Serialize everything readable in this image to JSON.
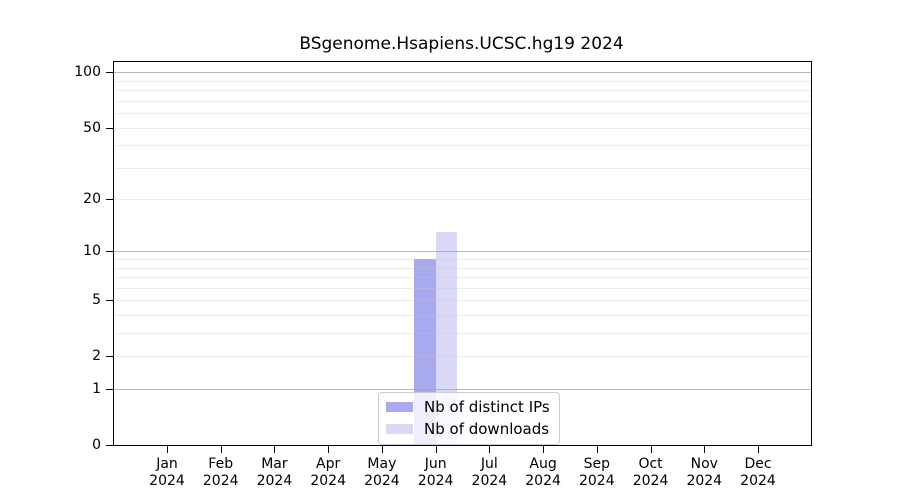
{
  "title": "BSgenome.Hsapiens.UCSC.hg19 2024",
  "chart_data": {
    "type": "bar",
    "title": "BSgenome.Hsapiens.UCSC.hg19 2024",
    "categories": [
      "Jan",
      "Feb",
      "Mar",
      "Apr",
      "May",
      "Jun",
      "Jul",
      "Aug",
      "Sep",
      "Oct",
      "Nov",
      "Dec"
    ],
    "category_year": "2024",
    "series": [
      {
        "name": "Nb of distinct IPs",
        "color": "#a9a9f0",
        "values": [
          0,
          0,
          0,
          0,
          0,
          9,
          0,
          0,
          0,
          0,
          0,
          0
        ]
      },
      {
        "name": "Nb of downloads",
        "color": "#d9d9f7",
        "values": [
          0,
          0,
          0,
          0,
          0,
          13,
          0,
          0,
          0,
          0,
          0,
          0
        ]
      }
    ],
    "xlabel": "",
    "ylabel": "",
    "y_scale": "log1p",
    "ylim": [
      0,
      114
    ],
    "y_ticks": [
      0,
      1,
      2,
      5,
      10,
      20,
      50,
      100
    ],
    "y_major_gridlines": [
      1,
      10,
      100
    ],
    "y_minor_gridlines": [
      2,
      3,
      4,
      5,
      6,
      7,
      8,
      9,
      20,
      30,
      40,
      50,
      60,
      70,
      80,
      90
    ],
    "grid": true,
    "legend_position": "lower center",
    "colors": {
      "bar_distinct_ips": "#a9a9f0",
      "bar_downloads": "#d9d9f7",
      "axis": "#000000",
      "grid_major": "#a0a0a0",
      "grid_minor": "#dedede",
      "legend_border": "#cccccc"
    }
  }
}
